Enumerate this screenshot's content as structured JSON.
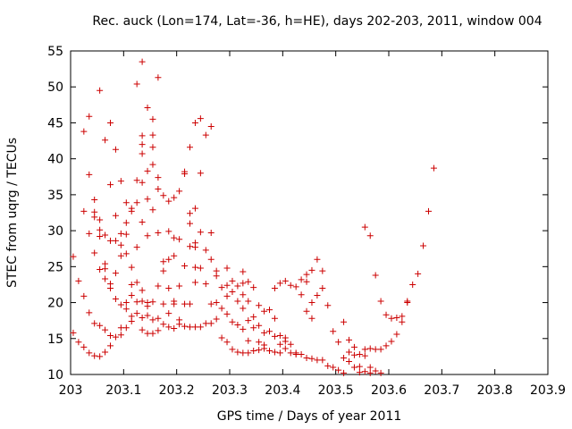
{
  "chart_data": {
    "type": "scatter",
    "title": "Rec. auck (Lon=174, Lat=-36, h=HE), days 202-203, 2011, window 004",
    "xlabel": "GPS time / Days of year 2011",
    "ylabel": "STEC from uqrg / TECUs",
    "xlim": [
      203,
      203.9
    ],
    "ylim": [
      10,
      55
    ],
    "x_ticks": [
      "203",
      "203.1",
      "203.2",
      "203.3",
      "203.4",
      "203.5",
      "203.6",
      "203.7",
      "203.8",
      "203.9"
    ],
    "y_ticks": [
      "10",
      "15",
      "20",
      "25",
      "30",
      "35",
      "40",
      "45",
      "50",
      "55"
    ],
    "grid": false,
    "legend": "none",
    "marker": "+",
    "color": "#cc0000",
    "points": [
      [
        203.005,
        26.4
      ],
      [
        203.005,
        15.8
      ],
      [
        203.015,
        23.0
      ],
      [
        203.015,
        14.5
      ],
      [
        203.025,
        43.8
      ],
      [
        203.025,
        32.7
      ],
      [
        203.025,
        20.9
      ],
      [
        203.025,
        13.8
      ],
      [
        203.035,
        45.9
      ],
      [
        203.035,
        37.8
      ],
      [
        203.035,
        29.6
      ],
      [
        203.035,
        18.6
      ],
      [
        203.035,
        13.0
      ],
      [
        203.045,
        34.3
      ],
      [
        203.045,
        32.6
      ],
      [
        203.045,
        31.9
      ],
      [
        203.045,
        26.9
      ],
      [
        203.045,
        17.1
      ],
      [
        203.045,
        12.6
      ],
      [
        203.055,
        49.5
      ],
      [
        203.055,
        31.5
      ],
      [
        203.055,
        30.1
      ],
      [
        203.055,
        29.2
      ],
      [
        203.055,
        24.6
      ],
      [
        203.055,
        16.8
      ],
      [
        203.055,
        12.5
      ],
      [
        203.065,
        42.6
      ],
      [
        203.065,
        29.4
      ],
      [
        203.065,
        25.4
      ],
      [
        203.065,
        24.7
      ],
      [
        203.065,
        23.3
      ],
      [
        203.065,
        16.2
      ],
      [
        203.065,
        13.1
      ],
      [
        203.075,
        45.0
      ],
      [
        203.075,
        36.4
      ],
      [
        203.075,
        28.6
      ],
      [
        203.075,
        22.6
      ],
      [
        203.075,
        22.0
      ],
      [
        203.075,
        15.4
      ],
      [
        203.075,
        14.0
      ],
      [
        203.085,
        41.3
      ],
      [
        203.085,
        32.1
      ],
      [
        203.085,
        28.6
      ],
      [
        203.085,
        24.1
      ],
      [
        203.085,
        20.5
      ],
      [
        203.085,
        15.2
      ],
      [
        203.095,
        36.9
      ],
      [
        203.095,
        29.6
      ],
      [
        203.095,
        28.0
      ],
      [
        203.095,
        26.5
      ],
      [
        203.095,
        19.7
      ],
      [
        203.095,
        16.5
      ],
      [
        203.095,
        15.5
      ],
      [
        203.105,
        33.9
      ],
      [
        203.105,
        31.1
      ],
      [
        203.105,
        29.5
      ],
      [
        203.105,
        26.8
      ],
      [
        203.105,
        20.0
      ],
      [
        203.105,
        19.1
      ],
      [
        203.105,
        16.5
      ],
      [
        203.115,
        33.1
      ],
      [
        203.115,
        32.7
      ],
      [
        203.115,
        24.9
      ],
      [
        203.115,
        22.5
      ],
      [
        203.115,
        21.0
      ],
      [
        203.115,
        18.1
      ],
      [
        203.115,
        17.4
      ],
      [
        203.125,
        50.4
      ],
      [
        203.125,
        37.0
      ],
      [
        203.125,
        33.9
      ],
      [
        203.125,
        27.7
      ],
      [
        203.125,
        22.8
      ],
      [
        203.125,
        20.1
      ],
      [
        203.125,
        18.5
      ],
      [
        203.135,
        53.5
      ],
      [
        203.135,
        43.2
      ],
      [
        203.135,
        42.0
      ],
      [
        203.135,
        40.7
      ],
      [
        203.135,
        36.7
      ],
      [
        203.135,
        31.2
      ],
      [
        203.135,
        21.7
      ],
      [
        203.135,
        20.2
      ],
      [
        203.135,
        17.9
      ],
      [
        203.135,
        16.2
      ],
      [
        203.145,
        47.1
      ],
      [
        203.145,
        38.3
      ],
      [
        203.145,
        34.4
      ],
      [
        203.145,
        29.3
      ],
      [
        203.145,
        20.0
      ],
      [
        203.145,
        19.5
      ],
      [
        203.145,
        18.2
      ],
      [
        203.145,
        15.7
      ],
      [
        203.155,
        45.5
      ],
      [
        203.155,
        43.3
      ],
      [
        203.155,
        41.6
      ],
      [
        203.155,
        39.2
      ],
      [
        203.155,
        32.9
      ],
      [
        203.155,
        20.1
      ],
      [
        203.155,
        17.6
      ],
      [
        203.155,
        15.7
      ],
      [
        203.165,
        51.3
      ],
      [
        203.165,
        37.4
      ],
      [
        203.165,
        35.8
      ],
      [
        203.165,
        29.7
      ],
      [
        203.165,
        22.3
      ],
      [
        203.165,
        17.8
      ],
      [
        203.165,
        16.1
      ],
      [
        203.175,
        34.9
      ],
      [
        203.175,
        25.7
      ],
      [
        203.175,
        24.4
      ],
      [
        203.175,
        19.8
      ],
      [
        203.175,
        17.0
      ],
      [
        203.185,
        34.1
      ],
      [
        203.185,
        29.9
      ],
      [
        203.185,
        26.0
      ],
      [
        203.185,
        22.0
      ],
      [
        203.185,
        18.5
      ],
      [
        203.185,
        16.6
      ],
      [
        203.195,
        34.6
      ],
      [
        203.195,
        29.0
      ],
      [
        203.195,
        26.5
      ],
      [
        203.195,
        20.2
      ],
      [
        203.195,
        19.8
      ],
      [
        203.195,
        16.4
      ],
      [
        203.205,
        35.5
      ],
      [
        203.205,
        28.8
      ],
      [
        203.205,
        22.3
      ],
      [
        203.205,
        17.6
      ],
      [
        203.205,
        17.0
      ],
      [
        203.215,
        38.2
      ],
      [
        203.215,
        37.9
      ],
      [
        203.215,
        25.1
      ],
      [
        203.215,
        19.8
      ],
      [
        203.215,
        16.7
      ],
      [
        203.225,
        41.6
      ],
      [
        203.225,
        32.4
      ],
      [
        203.225,
        31.0
      ],
      [
        203.225,
        27.8
      ],
      [
        203.225,
        19.8
      ],
      [
        203.225,
        16.6
      ],
      [
        203.235,
        45.0
      ],
      [
        203.235,
        33.1
      ],
      [
        203.235,
        28.3
      ],
      [
        203.235,
        27.7
      ],
      [
        203.235,
        24.9
      ],
      [
        203.235,
        22.8
      ],
      [
        203.235,
        16.6
      ],
      [
        203.245,
        45.6
      ],
      [
        203.245,
        38.0
      ],
      [
        203.245,
        29.8
      ],
      [
        203.245,
        24.8
      ],
      [
        203.245,
        16.6
      ],
      [
        203.255,
        43.3
      ],
      [
        203.255,
        27.3
      ],
      [
        203.255,
        22.6
      ],
      [
        203.255,
        17.1
      ],
      [
        203.265,
        44.5
      ],
      [
        203.265,
        29.7
      ],
      [
        203.265,
        26.0
      ],
      [
        203.265,
        19.8
      ],
      [
        203.265,
        17.1
      ],
      [
        203.275,
        24.4
      ],
      [
        203.275,
        23.7
      ],
      [
        203.275,
        20.0
      ],
      [
        203.275,
        17.7
      ],
      [
        203.285,
        22.1
      ],
      [
        203.285,
        19.2
      ],
      [
        203.285,
        15.1
      ],
      [
        203.295,
        24.8
      ],
      [
        203.295,
        22.4
      ],
      [
        203.295,
        20.9
      ],
      [
        203.295,
        18.4
      ],
      [
        203.295,
        14.5
      ],
      [
        203.305,
        23.0
      ],
      [
        203.305,
        21.5
      ],
      [
        203.305,
        17.3
      ],
      [
        203.305,
        13.5
      ],
      [
        203.315,
        22.3
      ],
      [
        203.315,
        20.2
      ],
      [
        203.315,
        16.9
      ],
      [
        203.315,
        13.1
      ],
      [
        203.325,
        24.3
      ],
      [
        203.325,
        22.7
      ],
      [
        203.325,
        21.1
      ],
      [
        203.325,
        19.2
      ],
      [
        203.325,
        16.3
      ],
      [
        203.325,
        13.0
      ],
      [
        203.335,
        22.9
      ],
      [
        203.335,
        20.2
      ],
      [
        203.335,
        17.5
      ],
      [
        203.335,
        14.7
      ],
      [
        203.335,
        13.0
      ],
      [
        203.345,
        22.1
      ],
      [
        203.345,
        18.0
      ],
      [
        203.345,
        16.5
      ],
      [
        203.345,
        13.3
      ],
      [
        203.355,
        19.6
      ],
      [
        203.355,
        16.8
      ],
      [
        203.355,
        14.5
      ],
      [
        203.355,
        13.4
      ],
      [
        203.365,
        18.8
      ],
      [
        203.365,
        15.8
      ],
      [
        203.365,
        14.1
      ],
      [
        203.365,
        13.6
      ],
      [
        203.375,
        19.0
      ],
      [
        203.375,
        16.0
      ],
      [
        203.375,
        13.3
      ],
      [
        203.385,
        22.0
      ],
      [
        203.385,
        17.8
      ],
      [
        203.385,
        15.3
      ],
      [
        203.385,
        13.1
      ],
      [
        203.395,
        22.7
      ],
      [
        203.395,
        15.4
      ],
      [
        203.395,
        14.2
      ],
      [
        203.395,
        13.0
      ],
      [
        203.405,
        23.0
      ],
      [
        203.405,
        15.1
      ],
      [
        203.405,
        14.6
      ],
      [
        203.405,
        13.6
      ],
      [
        203.415,
        22.4
      ],
      [
        203.415,
        14.2
      ],
      [
        203.415,
        13.0
      ],
      [
        203.425,
        22.2
      ],
      [
        203.425,
        13.0
      ],
      [
        203.425,
        12.8
      ],
      [
        203.435,
        23.2
      ],
      [
        203.435,
        21.1
      ],
      [
        203.435,
        12.8
      ],
      [
        203.445,
        23.9
      ],
      [
        203.445,
        22.9
      ],
      [
        203.445,
        18.8
      ],
      [
        203.445,
        12.3
      ],
      [
        203.455,
        24.5
      ],
      [
        203.455,
        20.0
      ],
      [
        203.455,
        17.8
      ],
      [
        203.455,
        12.2
      ],
      [
        203.465,
        26.0
      ],
      [
        203.465,
        21.0
      ],
      [
        203.465,
        12.0
      ],
      [
        203.475,
        24.4
      ],
      [
        203.475,
        22.0
      ],
      [
        203.475,
        12.0
      ],
      [
        203.485,
        19.6
      ],
      [
        203.485,
        11.2
      ],
      [
        203.495,
        16.0
      ],
      [
        203.495,
        11.0
      ],
      [
        203.505,
        14.5
      ],
      [
        203.505,
        10.6
      ],
      [
        203.515,
        17.3
      ],
      [
        203.515,
        12.3
      ],
      [
        203.515,
        10.2
      ],
      [
        203.525,
        14.8
      ],
      [
        203.525,
        13.1
      ],
      [
        203.525,
        11.8
      ],
      [
        203.535,
        13.8
      ],
      [
        203.535,
        12.7
      ],
      [
        203.535,
        11.0
      ],
      [
        203.545,
        12.8
      ],
      [
        203.545,
        11.1
      ],
      [
        203.545,
        10.3
      ],
      [
        203.555,
        30.5
      ],
      [
        203.555,
        13.5
      ],
      [
        203.555,
        12.6
      ],
      [
        203.555,
        10.4
      ],
      [
        203.565,
        29.3
      ],
      [
        203.565,
        13.6
      ],
      [
        203.565,
        11.0
      ],
      [
        203.565,
        10.2
      ],
      [
        203.575,
        23.8
      ],
      [
        203.575,
        13.5
      ],
      [
        203.575,
        10.5
      ],
      [
        203.585,
        20.2
      ],
      [
        203.585,
        13.5
      ],
      [
        203.585,
        10.2
      ],
      [
        203.595,
        18.3
      ],
      [
        203.595,
        14.0
      ],
      [
        203.605,
        17.8
      ],
      [
        203.605,
        14.6
      ],
      [
        203.615,
        17.9
      ],
      [
        203.615,
        15.6
      ],
      [
        203.625,
        18.1
      ],
      [
        203.625,
        17.3
      ],
      [
        203.635,
        20.0
      ],
      [
        203.635,
        20.2
      ],
      [
        203.645,
        22.5
      ],
      [
        203.655,
        24.0
      ],
      [
        203.665,
        27.9
      ],
      [
        203.675,
        32.7
      ],
      [
        203.685,
        38.7
      ]
    ]
  }
}
